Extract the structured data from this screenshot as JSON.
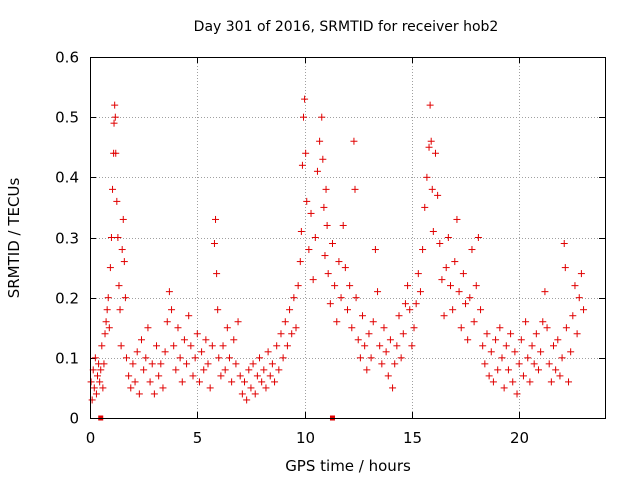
{
  "chart_data": {
    "type": "scatter",
    "title": "Day 301 of 2016, SRMTID for receiver hob2",
    "xlabel": "GPS time / hours",
    "ylabel": "SRMTID / TECUs",
    "xlim": [
      0,
      24
    ],
    "ylim": [
      0,
      0.6
    ],
    "xticks": [
      "0",
      "5",
      "10",
      "15",
      "20"
    ],
    "yticks": [
      "0",
      "0.1",
      "0.2",
      "0.3",
      "0.4",
      "0.5",
      "0.6"
    ],
    "grid": true,
    "marker": "plus",
    "color": "#e00000",
    "series": [
      {
        "name": "SRMTID",
        "points": [
          [
            0.05,
            0.06
          ],
          [
            0.1,
            0.03
          ],
          [
            0.15,
            0.08
          ],
          [
            0.2,
            0.05
          ],
          [
            0.25,
            0.1
          ],
          [
            0.3,
            0.04
          ],
          [
            0.35,
            0.07
          ],
          [
            0.4,
            0.09
          ],
          [
            0.45,
            0.06
          ],
          [
            0.5,
            0.08
          ],
          [
            0.55,
            0.12
          ],
          [
            0.6,
            0.05
          ],
          [
            0.65,
            0.09
          ],
          [
            0.7,
            0.14
          ],
          [
            0.75,
            0.16
          ],
          [
            0.8,
            0.18
          ],
          [
            0.85,
            0.2
          ],
          [
            0.9,
            0.15
          ],
          [
            0.95,
            0.25
          ],
          [
            1.0,
            0.3
          ],
          [
            1.05,
            0.38
          ],
          [
            1.1,
            0.44
          ],
          [
            1.12,
            0.49
          ],
          [
            1.15,
            0.52
          ],
          [
            1.18,
            0.5
          ],
          [
            1.2,
            0.44
          ],
          [
            1.25,
            0.36
          ],
          [
            1.3,
            0.3
          ],
          [
            1.35,
            0.22
          ],
          [
            1.4,
            0.18
          ],
          [
            1.45,
            0.12
          ],
          [
            1.5,
            0.28
          ],
          [
            1.55,
            0.33
          ],
          [
            1.6,
            0.26
          ],
          [
            1.65,
            0.2
          ],
          [
            1.7,
            0.1
          ],
          [
            1.8,
            0.07
          ],
          [
            1.9,
            0.05
          ],
          [
            2.0,
            0.09
          ],
          [
            2.1,
            0.06
          ],
          [
            2.2,
            0.11
          ],
          [
            2.3,
            0.04
          ],
          [
            2.4,
            0.13
          ],
          [
            2.5,
            0.08
          ],
          [
            2.6,
            0.1
          ],
          [
            2.7,
            0.15
          ],
          [
            2.8,
            0.06
          ],
          [
            2.9,
            0.09
          ],
          [
            3.0,
            0.04
          ],
          [
            3.1,
            0.12
          ],
          [
            3.2,
            0.07
          ],
          [
            3.3,
            0.09
          ],
          [
            3.4,
            0.05
          ],
          [
            3.5,
            0.11
          ],
          [
            3.6,
            0.16
          ],
          [
            3.7,
            0.21
          ],
          [
            3.8,
            0.18
          ],
          [
            3.9,
            0.12
          ],
          [
            4.0,
            0.08
          ],
          [
            4.1,
            0.15
          ],
          [
            4.2,
            0.1
          ],
          [
            4.3,
            0.06
          ],
          [
            4.4,
            0.13
          ],
          [
            4.5,
            0.09
          ],
          [
            4.6,
            0.17
          ],
          [
            4.7,
            0.12
          ],
          [
            4.8,
            0.07
          ],
          [
            4.9,
            0.1
          ],
          [
            5.0,
            0.14
          ],
          [
            5.1,
            0.06
          ],
          [
            5.2,
            0.11
          ],
          [
            5.3,
            0.08
          ],
          [
            5.4,
            0.13
          ],
          [
            5.5,
            0.09
          ],
          [
            5.6,
            0.05
          ],
          [
            5.7,
            0.12
          ],
          [
            5.8,
            0.29
          ],
          [
            5.85,
            0.33
          ],
          [
            5.9,
            0.24
          ],
          [
            5.95,
            0.18
          ],
          [
            6.0,
            0.1
          ],
          [
            6.1,
            0.07
          ],
          [
            6.2,
            0.12
          ],
          [
            6.3,
            0.08
          ],
          [
            6.4,
            0.15
          ],
          [
            6.5,
            0.1
          ],
          [
            6.6,
            0.06
          ],
          [
            6.7,
            0.13
          ],
          [
            6.8,
            0.09
          ],
          [
            6.9,
            0.16
          ],
          [
            7.0,
            0.07
          ],
          [
            7.1,
            0.04
          ],
          [
            7.2,
            0.06
          ],
          [
            7.3,
            0.03
          ],
          [
            7.4,
            0.08
          ],
          [
            7.5,
            0.05
          ],
          [
            7.6,
            0.09
          ],
          [
            7.7,
            0.04
          ],
          [
            7.8,
            0.07
          ],
          [
            7.9,
            0.1
          ],
          [
            8.0,
            0.06
          ],
          [
            8.1,
            0.08
          ],
          [
            8.2,
            0.05
          ],
          [
            8.3,
            0.11
          ],
          [
            8.4,
            0.07
          ],
          [
            8.5,
            0.09
          ],
          [
            8.6,
            0.06
          ],
          [
            8.7,
            0.12
          ],
          [
            8.8,
            0.08
          ],
          [
            8.9,
            0.14
          ],
          [
            9.0,
            0.1
          ],
          [
            9.1,
            0.16
          ],
          [
            9.2,
            0.12
          ],
          [
            9.3,
            0.18
          ],
          [
            9.4,
            0.14
          ],
          [
            9.5,
            0.2
          ],
          [
            9.6,
            0.15
          ],
          [
            9.7,
            0.22
          ],
          [
            9.8,
            0.26
          ],
          [
            9.85,
            0.31
          ],
          [
            9.9,
            0.42
          ],
          [
            9.95,
            0.5
          ],
          [
            10.0,
            0.53
          ],
          [
            10.05,
            0.44
          ],
          [
            10.1,
            0.36
          ],
          [
            10.2,
            0.28
          ],
          [
            10.3,
            0.34
          ],
          [
            10.4,
            0.23
          ],
          [
            10.5,
            0.3
          ],
          [
            10.6,
            0.41
          ],
          [
            10.7,
            0.46
          ],
          [
            10.8,
            0.5
          ],
          [
            10.85,
            0.43
          ],
          [
            10.9,
            0.35
          ],
          [
            10.95,
            0.27
          ],
          [
            11.0,
            0.38
          ],
          [
            11.05,
            0.32
          ],
          [
            11.1,
            0.24
          ],
          [
            11.2,
            0.19
          ],
          [
            11.3,
            0.29
          ],
          [
            11.4,
            0.22
          ],
          [
            11.5,
            0.16
          ],
          [
            11.6,
            0.26
          ],
          [
            11.7,
            0.2
          ],
          [
            11.8,
            0.32
          ],
          [
            11.9,
            0.25
          ],
          [
            12.0,
            0.18
          ],
          [
            12.1,
            0.22
          ],
          [
            12.2,
            0.15
          ],
          [
            12.3,
            0.46
          ],
          [
            12.35,
            0.38
          ],
          [
            12.4,
            0.2
          ],
          [
            12.5,
            0.13
          ],
          [
            12.6,
            0.1
          ],
          [
            12.7,
            0.17
          ],
          [
            12.8,
            0.12
          ],
          [
            12.9,
            0.08
          ],
          [
            13.0,
            0.14
          ],
          [
            13.1,
            0.1
          ],
          [
            13.2,
            0.16
          ],
          [
            13.3,
            0.28
          ],
          [
            13.4,
            0.21
          ],
          [
            13.5,
            0.12
          ],
          [
            13.6,
            0.09
          ],
          [
            13.7,
            0.15
          ],
          [
            13.8,
            0.11
          ],
          [
            13.9,
            0.07
          ],
          [
            14.0,
            0.13
          ],
          [
            14.1,
            0.05
          ],
          [
            14.2,
            0.09
          ],
          [
            14.3,
            0.12
          ],
          [
            14.4,
            0.17
          ],
          [
            14.5,
            0.1
          ],
          [
            14.6,
            0.14
          ],
          [
            14.7,
            0.19
          ],
          [
            14.8,
            0.22
          ],
          [
            14.9,
            0.18
          ],
          [
            15.0,
            0.12
          ],
          [
            15.1,
            0.15
          ],
          [
            15.2,
            0.19
          ],
          [
            15.3,
            0.24
          ],
          [
            15.4,
            0.21
          ],
          [
            15.5,
            0.28
          ],
          [
            15.6,
            0.35
          ],
          [
            15.7,
            0.4
          ],
          [
            15.8,
            0.45
          ],
          [
            15.85,
            0.52
          ],
          [
            15.9,
            0.46
          ],
          [
            15.95,
            0.38
          ],
          [
            16.0,
            0.31
          ],
          [
            16.1,
            0.44
          ],
          [
            16.2,
            0.37
          ],
          [
            16.3,
            0.29
          ],
          [
            16.4,
            0.23
          ],
          [
            16.5,
            0.17
          ],
          [
            16.6,
            0.25
          ],
          [
            16.7,
            0.3
          ],
          [
            16.8,
            0.22
          ],
          [
            16.9,
            0.18
          ],
          [
            17.0,
            0.26
          ],
          [
            17.1,
            0.33
          ],
          [
            17.2,
            0.21
          ],
          [
            17.3,
            0.15
          ],
          [
            17.4,
            0.24
          ],
          [
            17.5,
            0.19
          ],
          [
            17.6,
            0.13
          ],
          [
            17.7,
            0.2
          ],
          [
            17.8,
            0.28
          ],
          [
            17.9,
            0.16
          ],
          [
            18.0,
            0.22
          ],
          [
            18.1,
            0.3
          ],
          [
            18.2,
            0.18
          ],
          [
            18.3,
            0.12
          ],
          [
            18.4,
            0.09
          ],
          [
            18.5,
            0.14
          ],
          [
            18.6,
            0.07
          ],
          [
            18.7,
            0.11
          ],
          [
            18.8,
            0.06
          ],
          [
            18.9,
            0.13
          ],
          [
            19.0,
            0.08
          ],
          [
            19.1,
            0.15
          ],
          [
            19.2,
            0.1
          ],
          [
            19.3,
            0.05
          ],
          [
            19.4,
            0.12
          ],
          [
            19.5,
            0.08
          ],
          [
            19.6,
            0.14
          ],
          [
            19.7,
            0.06
          ],
          [
            19.8,
            0.11
          ],
          [
            19.9,
            0.04
          ],
          [
            20.0,
            0.09
          ],
          [
            20.1,
            0.13
          ],
          [
            20.2,
            0.07
          ],
          [
            20.3,
            0.16
          ],
          [
            20.4,
            0.1
          ],
          [
            20.5,
            0.06
          ],
          [
            20.6,
            0.12
          ],
          [
            20.7,
            0.09
          ],
          [
            20.8,
            0.14
          ],
          [
            20.9,
            0.08
          ],
          [
            21.0,
            0.11
          ],
          [
            21.1,
            0.16
          ],
          [
            21.2,
            0.21
          ],
          [
            21.3,
            0.15
          ],
          [
            21.4,
            0.09
          ],
          [
            21.5,
            0.06
          ],
          [
            21.6,
            0.12
          ],
          [
            21.7,
            0.08
          ],
          [
            21.8,
            0.13
          ],
          [
            21.9,
            0.07
          ],
          [
            22.0,
            0.1
          ],
          [
            22.1,
            0.29
          ],
          [
            22.15,
            0.25
          ],
          [
            22.2,
            0.15
          ],
          [
            22.3,
            0.06
          ],
          [
            22.4,
            0.11
          ],
          [
            22.5,
            0.17
          ],
          [
            22.6,
            0.22
          ],
          [
            22.7,
            0.14
          ],
          [
            22.8,
            0.2
          ],
          [
            22.9,
            0.24
          ],
          [
            23.0,
            0.18
          ]
        ]
      }
    ],
    "markers_on_axis": [
      0.5,
      11.3
    ]
  }
}
